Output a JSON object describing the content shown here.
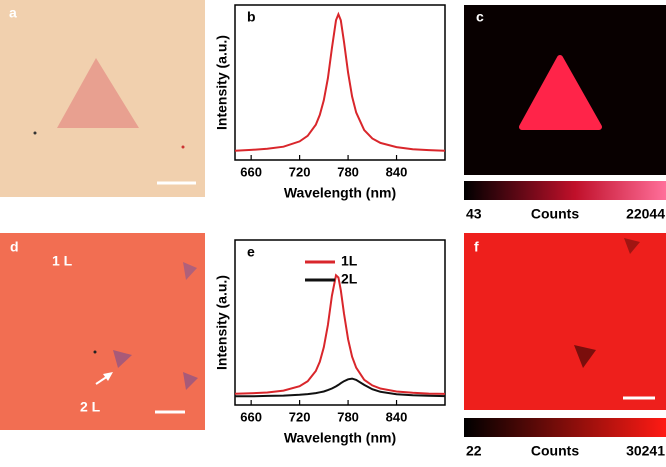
{
  "panels": {
    "a": {
      "label": "a"
    },
    "c": {
      "label": "c",
      "colorbar": {
        "min": 43,
        "label": "Counts",
        "max": 22044
      }
    },
    "d": {
      "label": "d",
      "annotations": [
        "1 L",
        "2 L"
      ]
    },
    "f": {
      "label": "f",
      "colorbar": {
        "min": 22,
        "label": "Counts",
        "max": 30241
      }
    }
  },
  "chart_data": [
    {
      "type": "line",
      "title": "b",
      "xlabel": "Wavelength (nm)",
      "ylabel": "Intensity (a.u.)",
      "x": [
        640,
        660,
        680,
        700,
        720,
        730,
        740,
        745,
        750,
        755,
        760,
        765,
        768,
        771,
        775,
        780,
        785,
        790,
        800,
        810,
        820,
        840,
        860,
        880,
        900
      ],
      "series": [
        {
          "color": "#d9262b",
          "values": [
            0.06,
            0.065,
            0.072,
            0.086,
            0.12,
            0.156,
            0.228,
            0.291,
            0.385,
            0.528,
            0.721,
            0.901,
            0.94,
            0.901,
            0.762,
            0.563,
            0.41,
            0.306,
            0.193,
            0.139,
            0.11,
            0.083,
            0.07,
            0.064,
            0.06
          ]
        }
      ],
      "xlim": [
        640,
        900
      ],
      "ylim": [
        0,
        1
      ],
      "xticks": [
        660,
        720,
        780,
        840
      ],
      "legend": false
    },
    {
      "type": "line",
      "title": "e",
      "xlabel": "Wavelength (nm)",
      "ylabel": "Intensity (a.u.)",
      "x": [
        640,
        660,
        680,
        700,
        720,
        730,
        740,
        745,
        750,
        755,
        760,
        765,
        768,
        771,
        775,
        780,
        785,
        790,
        800,
        810,
        820,
        840,
        860,
        880,
        900
      ],
      "series": [
        {
          "name": "1L",
          "color": "#d9262b",
          "values": [
            0.068,
            0.071,
            0.076,
            0.087,
            0.114,
            0.144,
            0.206,
            0.262,
            0.35,
            0.485,
            0.662,
            0.786,
            0.773,
            0.696,
            0.554,
            0.398,
            0.293,
            0.226,
            0.153,
            0.119,
            0.1,
            0.082,
            0.074,
            0.069,
            0.067
          ]
        },
        {
          "name": "2L",
          "color": "#111111",
          "values": [
            0.053,
            0.053,
            0.055,
            0.057,
            0.062,
            0.066,
            0.072,
            0.077,
            0.082,
            0.09,
            0.1,
            0.113,
            0.122,
            0.132,
            0.144,
            0.156,
            0.16,
            0.152,
            0.122,
            0.096,
            0.08,
            0.065,
            0.059,
            0.056,
            0.054
          ]
        }
      ],
      "xlim": [
        640,
        900
      ],
      "ylim": [
        0,
        1
      ],
      "xticks": [
        660,
        720,
        780,
        840
      ],
      "legend": true
    }
  ]
}
